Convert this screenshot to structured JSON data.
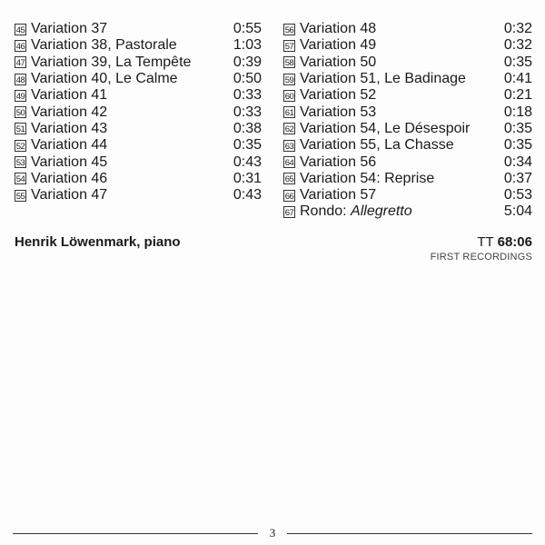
{
  "tracks_left": [
    {
      "num": "45",
      "title": "Variation 37",
      "time": "0:55"
    },
    {
      "num": "46",
      "title": "Variation 38, Pastorale",
      "time": "1:03"
    },
    {
      "num": "47",
      "title": "Variation 39, La Tempête",
      "time": "0:39"
    },
    {
      "num": "48",
      "title": "Variation 40, Le Calme",
      "time": "0:50"
    },
    {
      "num": "49",
      "title": "Variation 41",
      "time": "0:33"
    },
    {
      "num": "50",
      "title": "Variation 42",
      "time": "0:33"
    },
    {
      "num": "51",
      "title": "Variation 43",
      "time": "0:38"
    },
    {
      "num": "52",
      "title": "Variation 44",
      "time": "0:35"
    },
    {
      "num": "53",
      "title": "Variation 45",
      "time": "0:43"
    },
    {
      "num": "54",
      "title": "Variation 46",
      "time": "0:31"
    },
    {
      "num": "55",
      "title": "Variation 47",
      "time": "0:43"
    }
  ],
  "tracks_right": [
    {
      "num": "56",
      "title": "Variation 48",
      "time": "0:32"
    },
    {
      "num": "57",
      "title": "Variation 49",
      "time": "0:32"
    },
    {
      "num": "58",
      "title": "Variation 50",
      "time": "0:35"
    },
    {
      "num": "59",
      "title": "Variation 51, Le Badinage",
      "time": "0:41"
    },
    {
      "num": "60",
      "title": "Variation 52",
      "time": "0:21"
    },
    {
      "num": "61",
      "title": "Variation 53",
      "time": "0:18"
    },
    {
      "num": "62",
      "title": "Variation 54, Le Désespoir",
      "time": "0:35"
    },
    {
      "num": "63",
      "title": "Variation 55, La Chasse",
      "time": "0:35"
    },
    {
      "num": "64",
      "title": "Variation 56",
      "time": "0:34"
    },
    {
      "num": "65",
      "title": "Variation 54: Reprise",
      "time": "0:37"
    },
    {
      "num": "66",
      "title": "Variation 57",
      "time": "0:53"
    },
    {
      "num": "67",
      "title": "Rondo: ",
      "title_italic": "Allegretto",
      "time": "5:04"
    }
  ],
  "performer": "Henrik Löwenmark, piano",
  "total_label": "TT",
  "total_time": "68:06",
  "note": "FIRST RECORDINGS",
  "page_number": "3"
}
